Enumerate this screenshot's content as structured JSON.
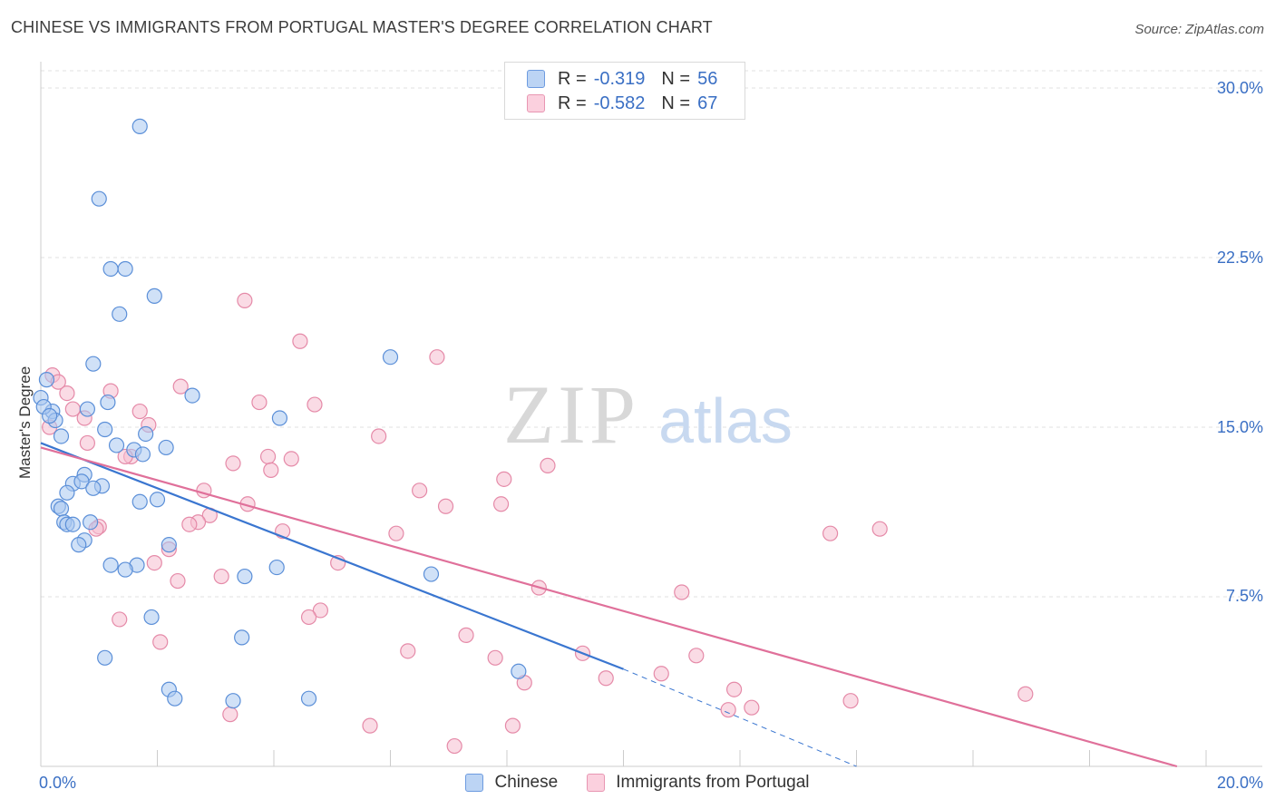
{
  "title": "CHINESE VS IMMIGRANTS FROM PORTUGAL MASTER'S DEGREE CORRELATION CHART",
  "source": "Source: ZipAtlas.com",
  "watermark": {
    "zip": "ZIP",
    "atlas": "atlas"
  },
  "legend": {
    "series1": {
      "r_label": "R =",
      "r_value": "-0.319",
      "n_label": "N =",
      "n_value": "56"
    },
    "series2": {
      "r_label": "R =",
      "r_value": "-0.582",
      "n_label": "N =",
      "n_value": "67"
    }
  },
  "bottom_legend": {
    "series1": "Chinese",
    "series2": "Immigrants from Portugal"
  },
  "colors": {
    "blue_fill": "#a9c8f0",
    "blue_stroke": "#5b8fd8",
    "blue_line": "#3a76d0",
    "pink_fill": "#f6bdd0",
    "pink_stroke": "#e58aa8",
    "pink_line": "#e0709a",
    "axis_text": "#3a6fc4",
    "grid": "#e2e2e2"
  },
  "chart_data": {
    "type": "scatter",
    "title": "CHINESE VS IMMIGRANTS FROM PORTUGAL MASTER'S DEGREE CORRELATION CHART",
    "xlabel": "",
    "ylabel": "Master's Degree",
    "xlim": [
      0,
      20
    ],
    "ylim": [
      0,
      30
    ],
    "x_tick_labels": [
      "0.0%",
      "20.0%"
    ],
    "y_ticks": [
      7.5,
      15.0,
      22.5,
      30.0
    ],
    "y_tick_labels": [
      "7.5%",
      "15.0%",
      "22.5%",
      "30.0%"
    ],
    "grid": true,
    "series": [
      {
        "name": "Chinese",
        "points": [
          [
            1.7,
            28.3
          ],
          [
            1.0,
            25.1
          ],
          [
            1.2,
            22.0
          ],
          [
            1.45,
            22.0
          ],
          [
            1.35,
            20.0
          ],
          [
            1.95,
            20.8
          ],
          [
            0.1,
            17.1
          ],
          [
            0.9,
            17.8
          ],
          [
            6.0,
            18.1
          ],
          [
            1.15,
            16.1
          ],
          [
            2.6,
            16.4
          ],
          [
            0.2,
            15.7
          ],
          [
            0.8,
            15.8
          ],
          [
            4.1,
            15.4
          ],
          [
            0.25,
            15.3
          ],
          [
            0.35,
            14.6
          ],
          [
            1.1,
            14.9
          ],
          [
            1.8,
            14.7
          ],
          [
            1.3,
            14.2
          ],
          [
            1.6,
            14.0
          ],
          [
            2.15,
            14.1
          ],
          [
            1.75,
            13.8
          ],
          [
            0.75,
            12.9
          ],
          [
            0.55,
            12.5
          ],
          [
            0.7,
            12.6
          ],
          [
            1.05,
            12.4
          ],
          [
            0.45,
            12.1
          ],
          [
            2.0,
            11.8
          ],
          [
            1.7,
            11.7
          ],
          [
            0.3,
            11.5
          ],
          [
            0.35,
            11.4
          ],
          [
            0.4,
            10.8
          ],
          [
            0.45,
            10.7
          ],
          [
            0.55,
            10.7
          ],
          [
            0.85,
            10.8
          ],
          [
            0.75,
            10.0
          ],
          [
            0.65,
            9.8
          ],
          [
            2.2,
            9.8
          ],
          [
            1.2,
            8.9
          ],
          [
            1.65,
            8.9
          ],
          [
            1.45,
            8.7
          ],
          [
            3.5,
            8.4
          ],
          [
            4.05,
            8.8
          ],
          [
            6.7,
            8.5
          ],
          [
            1.9,
            6.6
          ],
          [
            3.45,
            5.7
          ],
          [
            1.1,
            4.8
          ],
          [
            2.2,
            3.4
          ],
          [
            2.3,
            3.0
          ],
          [
            3.3,
            2.9
          ],
          [
            4.6,
            3.0
          ],
          [
            8.2,
            4.2
          ],
          [
            0.0,
            16.3
          ],
          [
            0.05,
            15.9
          ],
          [
            0.15,
            15.5
          ],
          [
            0.9,
            12.3
          ]
        ]
      },
      {
        "name": "Immigrants from Portugal",
        "points": [
          [
            3.5,
            20.6
          ],
          [
            4.45,
            18.8
          ],
          [
            6.8,
            18.1
          ],
          [
            0.2,
            17.3
          ],
          [
            0.3,
            17.0
          ],
          [
            2.4,
            16.8
          ],
          [
            1.2,
            16.6
          ],
          [
            0.45,
            16.5
          ],
          [
            3.75,
            16.1
          ],
          [
            4.7,
            16.0
          ],
          [
            0.55,
            15.8
          ],
          [
            1.7,
            15.7
          ],
          [
            0.75,
            15.4
          ],
          [
            1.85,
            15.1
          ],
          [
            5.8,
            14.6
          ],
          [
            0.8,
            14.3
          ],
          [
            1.55,
            13.7
          ],
          [
            1.45,
            13.7
          ],
          [
            3.9,
            13.7
          ],
          [
            4.3,
            13.6
          ],
          [
            3.3,
            13.4
          ],
          [
            8.7,
            13.3
          ],
          [
            3.95,
            13.1
          ],
          [
            7.95,
            12.7
          ],
          [
            2.8,
            12.2
          ],
          [
            6.5,
            12.2
          ],
          [
            3.55,
            11.6
          ],
          [
            6.95,
            11.5
          ],
          [
            7.9,
            11.6
          ],
          [
            2.9,
            11.1
          ],
          [
            2.7,
            10.8
          ],
          [
            2.55,
            10.7
          ],
          [
            1.0,
            10.6
          ],
          [
            0.95,
            10.5
          ],
          [
            4.15,
            10.4
          ],
          [
            6.1,
            10.3
          ],
          [
            13.55,
            10.3
          ],
          [
            14.4,
            10.5
          ],
          [
            2.2,
            9.6
          ],
          [
            5.1,
            9.0
          ],
          [
            1.95,
            9.0
          ],
          [
            3.1,
            8.4
          ],
          [
            2.35,
            8.2
          ],
          [
            8.55,
            7.9
          ],
          [
            11.0,
            7.7
          ],
          [
            4.8,
            6.9
          ],
          [
            4.6,
            6.6
          ],
          [
            1.35,
            6.5
          ],
          [
            2.05,
            5.5
          ],
          [
            7.3,
            5.8
          ],
          [
            6.3,
            5.1
          ],
          [
            7.8,
            4.8
          ],
          [
            9.3,
            5.0
          ],
          [
            11.25,
            4.9
          ],
          [
            9.7,
            3.9
          ],
          [
            10.65,
            4.1
          ],
          [
            8.3,
            3.7
          ],
          [
            11.9,
            3.4
          ],
          [
            12.2,
            2.6
          ],
          [
            11.8,
            2.5
          ],
          [
            13.9,
            2.9
          ],
          [
            16.9,
            3.2
          ],
          [
            3.25,
            2.3
          ],
          [
            5.65,
            1.8
          ],
          [
            8.1,
            1.8
          ],
          [
            7.1,
            0.9
          ],
          [
            0.15,
            15.0
          ]
        ]
      }
    ],
    "trendlines": [
      {
        "series": "Chinese",
        "x0": 0,
        "y0": 14.3,
        "x1": 10.0,
        "y1": 4.3,
        "dashed_to_x": 14.0,
        "dashed_to_y": 0.0
      },
      {
        "series": "Immigrants from Portugal",
        "x0": 0,
        "y0": 14.1,
        "x1": 19.5,
        "y1": 0.0
      }
    ]
  }
}
